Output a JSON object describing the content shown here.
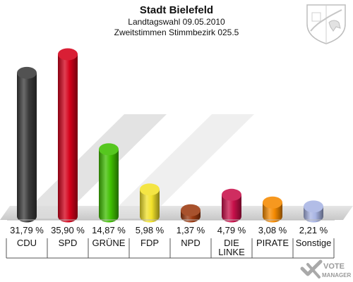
{
  "chart_data": {
    "type": "bar",
    "title": "Stadt Bielefeld",
    "subtitle_lines": [
      "Landtagswahl 09.05.2010",
      "Zweitstimmen Stimmbezirk 025.5"
    ],
    "categories": [
      "CDU",
      "SPD",
      "GRÜNE",
      "FDP",
      "NPD",
      "DIE LINKE",
      "PIRATE",
      "Sonstige"
    ],
    "category_lines": [
      [
        "CDU"
      ],
      [
        "SPD"
      ],
      [
        "GRÜNE"
      ],
      [
        "FDP"
      ],
      [
        "NPD"
      ],
      [
        "DIE",
        "LINKE"
      ],
      [
        "PIRATE"
      ],
      [
        "Sonstige"
      ]
    ],
    "values": [
      31.79,
      35.9,
      14.87,
      5.98,
      1.37,
      4.79,
      3.08,
      2.21
    ],
    "value_labels": [
      "31,79 %",
      "35,90 %",
      "14,87 %",
      "5,98 %",
      "1,37 %",
      "4,79 %",
      "3,08 %",
      "2,21 %"
    ],
    "colors": [
      "#3a3a3a",
      "#d4001a",
      "#3fbf00",
      "#f2e22a",
      "#9c3a10",
      "#c8104a",
      "#f58a00",
      "#a8b4e4"
    ],
    "ylim": [
      0,
      35.9
    ],
    "grid": false,
    "legend": "none"
  },
  "logo": {
    "name": "coat-of-arms-icon"
  },
  "watermark": {
    "text": "VOTE MANAGER",
    "icon": "vote-check-icon"
  }
}
